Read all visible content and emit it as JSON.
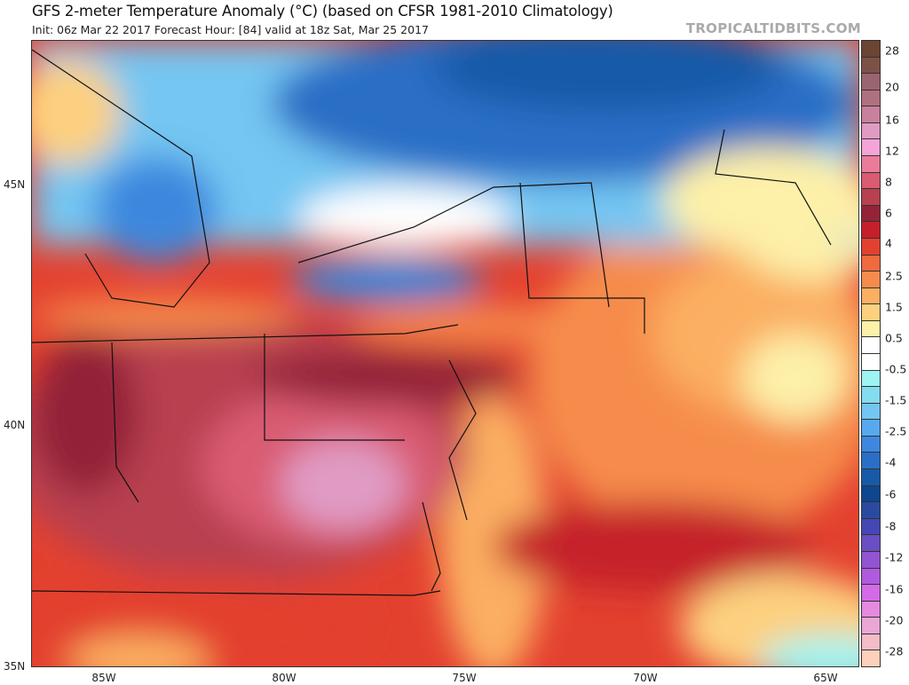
{
  "header": {
    "title": "GFS 2-meter Temperature Anomaly (°C) (based on CFSR 1981-2010 Climatology)",
    "subtitle": "Init: 06z Mar 22 2017   Forecast Hour: [84]   valid at 18z Sat, Mar 25 2017",
    "brand": "TROPICALTIDBITS.COM"
  },
  "axes": {
    "lat_labels": [
      "45N",
      "40N",
      "35N"
    ],
    "lon_labels": [
      "85W",
      "80W",
      "75W",
      "70W",
      "65W"
    ]
  },
  "colorbar": {
    "labels": [
      "28",
      "20",
      "16",
      "12",
      "8",
      "6",
      "4",
      "2.5",
      "1.5",
      "0.5",
      "-0.5",
      "-1.5",
      "-2.5",
      "-4",
      "-6",
      "-8",
      "-12",
      "-16",
      "-20",
      "-28"
    ],
    "colors": [
      "#6b4433",
      "#7d5246",
      "#9a6470",
      "#b0717f",
      "#c9809c",
      "#e09bc4",
      "#f5a4d8",
      "#ea7c9a",
      "#d95c72",
      "#b8404f",
      "#932437",
      "#c5202a",
      "#e3412f",
      "#ef6a3d",
      "#f68c4c",
      "#fbaf62",
      "#fdd07f",
      "#fdf0a8",
      "#ffffff",
      "#ffffff",
      "#9ef4f2",
      "#84dcef",
      "#74c6f2",
      "#57a9ee",
      "#3d88de",
      "#2b6ec6",
      "#175aa8",
      "#0e4690",
      "#2a4aa0",
      "#4548b4",
      "#6a4ec4",
      "#9254d2",
      "#b05ae0",
      "#d46ae6",
      "#e48ae0",
      "#eaa6d4",
      "#f4bcc6",
      "#fdd0bc"
    ]
  }
}
